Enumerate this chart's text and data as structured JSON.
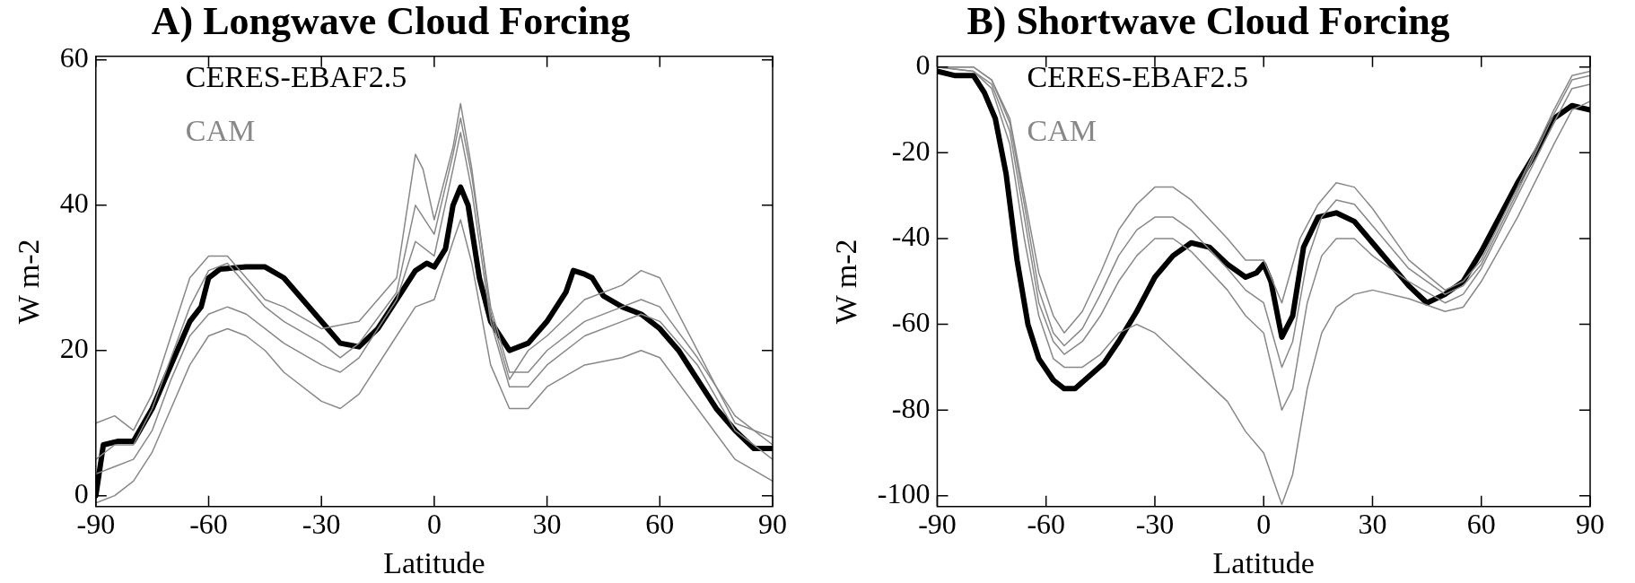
{
  "chart_data": [
    {
      "type": "line",
      "title": "A) Longwave Cloud Forcing",
      "xlabel": "Latitude",
      "ylabel": "W m-2",
      "xlim": [
        -90,
        90
      ],
      "xticks": [
        -90,
        -60,
        -30,
        0,
        30,
        60,
        90
      ],
      "ylim": [
        -1.5,
        60.5
      ],
      "yticks": [
        0,
        20,
        40,
        60
      ],
      "grid": false,
      "legend": "top left",
      "marker": "none",
      "line_style": "solid",
      "series": [
        {
          "name": "CAM",
          "color": "#888888",
          "x": [
            -90,
            -85,
            -80,
            -75,
            -70,
            -65,
            -60,
            -55,
            -50,
            -45,
            -40,
            -30,
            -20,
            -10,
            -5,
            -3,
            0,
            5,
            7,
            10,
            15,
            20,
            25,
            30,
            40,
            50,
            55,
            60,
            65,
            70,
            75,
            80,
            90
          ],
          "values": [
            10,
            11,
            9,
            14,
            22,
            30,
            33,
            33,
            30,
            27,
            26,
            23,
            24,
            30,
            47,
            45,
            38,
            48,
            54,
            45,
            25,
            16,
            20,
            22,
            27,
            29,
            31,
            30,
            25,
            20,
            15,
            10,
            8
          ]
        },
        {
          "color": "#888888",
          "x": [
            -90,
            -85,
            -80,
            -75,
            -70,
            -65,
            -60,
            -55,
            -50,
            -45,
            -40,
            -30,
            -25,
            -20,
            -10,
            -5,
            0,
            5,
            7,
            10,
            15,
            20,
            25,
            30,
            40,
            50,
            55,
            60,
            70,
            80,
            90
          ],
          "values": [
            -1,
            0,
            2,
            6,
            12,
            18,
            22,
            23,
            22,
            20,
            17,
            13,
            12,
            14,
            22,
            26,
            27,
            35,
            38,
            32,
            18,
            12,
            12,
            15,
            18,
            19,
            20,
            19,
            12,
            5,
            2
          ]
        },
        {
          "color": "#888888",
          "x": [
            -90,
            -85,
            -80,
            -75,
            -70,
            -65,
            -60,
            -55,
            -50,
            -45,
            -40,
            -30,
            -25,
            -20,
            -10,
            -5,
            0,
            5,
            7,
            10,
            15,
            20,
            25,
            30,
            40,
            50,
            55,
            60,
            70,
            80,
            90
          ],
          "values": [
            3,
            4,
            5,
            9,
            16,
            22,
            25,
            26,
            25,
            23,
            21,
            18,
            17,
            19,
            27,
            35,
            33,
            45,
            50,
            42,
            24,
            15,
            15,
            18,
            22,
            24,
            25,
            24,
            18,
            9,
            5
          ]
        },
        {
          "color": "#888888",
          "x": [
            -90,
            -85,
            -80,
            -75,
            -70,
            -65,
            -60,
            -55,
            -50,
            -45,
            -40,
            -30,
            -25,
            -20,
            -10,
            -5,
            0,
            5,
            7,
            10,
            15,
            20,
            25,
            30,
            40,
            50,
            55,
            60,
            70,
            80,
            90
          ],
          "values": [
            5,
            7,
            7,
            12,
            19,
            26,
            31,
            32,
            29,
            26,
            24,
            21,
            19,
            21,
            28,
            40,
            36,
            47,
            52,
            44,
            26,
            17,
            17,
            20,
            24,
            26,
            27,
            26,
            19,
            11,
            7
          ]
        },
        {
          "name": "CERES-EBAF2.5",
          "color": "#000000",
          "x": [
            -90,
            -88,
            -84,
            -80,
            -75,
            -70,
            -65,
            -62,
            -60,
            -57,
            -50,
            -45,
            -40,
            -35,
            -30,
            -25,
            -20,
            -15,
            -10,
            -5,
            -2,
            0,
            3,
            5,
            7,
            9,
            12,
            15,
            20,
            25,
            30,
            35,
            37,
            40,
            42,
            45,
            50,
            55,
            60,
            65,
            70,
            75,
            80,
            85,
            90
          ],
          "values": [
            0,
            7,
            7.5,
            7.5,
            12,
            18,
            24,
            26,
            30,
            31.2,
            31.5,
            31.5,
            30,
            27,
            24,
            21,
            20.5,
            23,
            27,
            31,
            32,
            31.5,
            34,
            40,
            42.5,
            40,
            30,
            24,
            20,
            21,
            24,
            28,
            31,
            30.5,
            30,
            27.5,
            26,
            25,
            23,
            20,
            16,
            12,
            9,
            6.5,
            6.5
          ]
        }
      ]
    },
    {
      "type": "line",
      "title": "B) Shortwave Cloud Forcing",
      "xlabel": "Latitude",
      "ylabel": "W m-2",
      "xlim": [
        -90,
        90
      ],
      "xticks": [
        -90,
        -60,
        -30,
        0,
        30,
        60,
        90
      ],
      "ylim": [
        -102.5,
        2.5
      ],
      "yticks": [
        -100,
        -80,
        -60,
        -40,
        -20,
        0
      ],
      "grid": false,
      "legend": "top left",
      "marker": "none",
      "line_style": "solid",
      "series": [
        {
          "name": "CAM",
          "color": "#888888",
          "x": [
            -90,
            -80,
            -75,
            -70,
            -66,
            -62,
            -58,
            -55,
            -50,
            -45,
            -40,
            -35,
            -30,
            -25,
            -20,
            -10,
            -5,
            0,
            5,
            10,
            15,
            20,
            25,
            30,
            40,
            50,
            55,
            60,
            70,
            80,
            85,
            90
          ],
          "values": [
            0,
            0,
            -3,
            -12,
            -30,
            -48,
            -58,
            -62,
            -57,
            -48,
            -38,
            -32,
            -28,
            -28,
            -31,
            -40,
            -45,
            -45,
            -55,
            -40,
            -32,
            -27,
            -28,
            -33,
            -45,
            -52,
            -50,
            -45,
            -28,
            -10,
            -2,
            -1
          ]
        },
        {
          "color": "#888888",
          "x": [
            -90,
            -80,
            -75,
            -70,
            -66,
            -62,
            -58,
            -55,
            -50,
            -45,
            -40,
            -35,
            -30,
            -25,
            -20,
            -10,
            -5,
            0,
            5,
            8,
            12,
            16,
            20,
            25,
            30,
            40,
            50,
            55,
            60,
            70,
            80,
            85,
            90
          ],
          "values": [
            0,
            -1,
            -5,
            -18,
            -40,
            -58,
            -68,
            -70,
            -70,
            -67,
            -62,
            -60,
            -62,
            -66,
            -70,
            -78,
            -85,
            -90,
            -102,
            -95,
            -75,
            -62,
            -56,
            -53,
            -52,
            -54,
            -57,
            -56,
            -50,
            -35,
            -18,
            -10,
            -8
          ]
        },
        {
          "color": "#888888",
          "x": [
            -90,
            -80,
            -75,
            -70,
            -66,
            -62,
            -58,
            -55,
            -50,
            -45,
            -40,
            -35,
            -30,
            -25,
            -20,
            -10,
            -5,
            0,
            5,
            8,
            12,
            16,
            20,
            25,
            30,
            40,
            50,
            55,
            60,
            70,
            80,
            85,
            90
          ],
          "values": [
            0,
            -1,
            -4,
            -15,
            -35,
            -55,
            -64,
            -67,
            -64,
            -58,
            -50,
            -44,
            -40,
            -40,
            -43,
            -52,
            -58,
            -62,
            -80,
            -75,
            -55,
            -44,
            -40,
            -40,
            -44,
            -50,
            -55,
            -53,
            -47,
            -30,
            -13,
            -5,
            -4
          ]
        },
        {
          "color": "#888888",
          "x": [
            -90,
            -80,
            -75,
            -70,
            -66,
            -62,
            -58,
            -55,
            -50,
            -45,
            -40,
            -35,
            -30,
            -25,
            -20,
            -10,
            -5,
            0,
            5,
            8,
            12,
            16,
            20,
            25,
            30,
            40,
            50,
            55,
            60,
            70,
            80,
            85,
            90
          ],
          "values": [
            0,
            0,
            -3,
            -13,
            -32,
            -52,
            -62,
            -65,
            -61,
            -53,
            -44,
            -38,
            -35,
            -35,
            -38,
            -47,
            -52,
            -55,
            -70,
            -64,
            -45,
            -35,
            -31,
            -32,
            -37,
            -47,
            -53,
            -51,
            -46,
            -29,
            -11,
            -3,
            -2
          ]
        },
        {
          "name": "CERES-EBAF2.5",
          "color": "#000000",
          "x": [
            -90,
            -85,
            -80,
            -77,
            -74,
            -71,
            -68,
            -65,
            -62,
            -58,
            -55,
            -52,
            -48,
            -44,
            -40,
            -35,
            -30,
            -25,
            -20,
            -15,
            -10,
            -5,
            -2,
            0,
            2,
            5,
            8,
            11,
            15,
            20,
            25,
            30,
            35,
            40,
            45,
            50,
            55,
            60,
            65,
            70,
            75,
            80,
            85,
            90
          ],
          "values": [
            -1,
            -2,
            -2,
            -6,
            -12,
            -25,
            -45,
            -60,
            -68,
            -73,
            -75,
            -75,
            -72,
            -69,
            -64,
            -57,
            -49,
            -44,
            -41,
            -42,
            -46,
            -49,
            -48,
            -46,
            -50,
            -63,
            -58,
            -42,
            -35,
            -34,
            -36,
            -41,
            -46,
            -51,
            -55,
            -53,
            -50,
            -43,
            -35,
            -27,
            -20,
            -12,
            -9,
            -10
          ]
        }
      ]
    }
  ]
}
